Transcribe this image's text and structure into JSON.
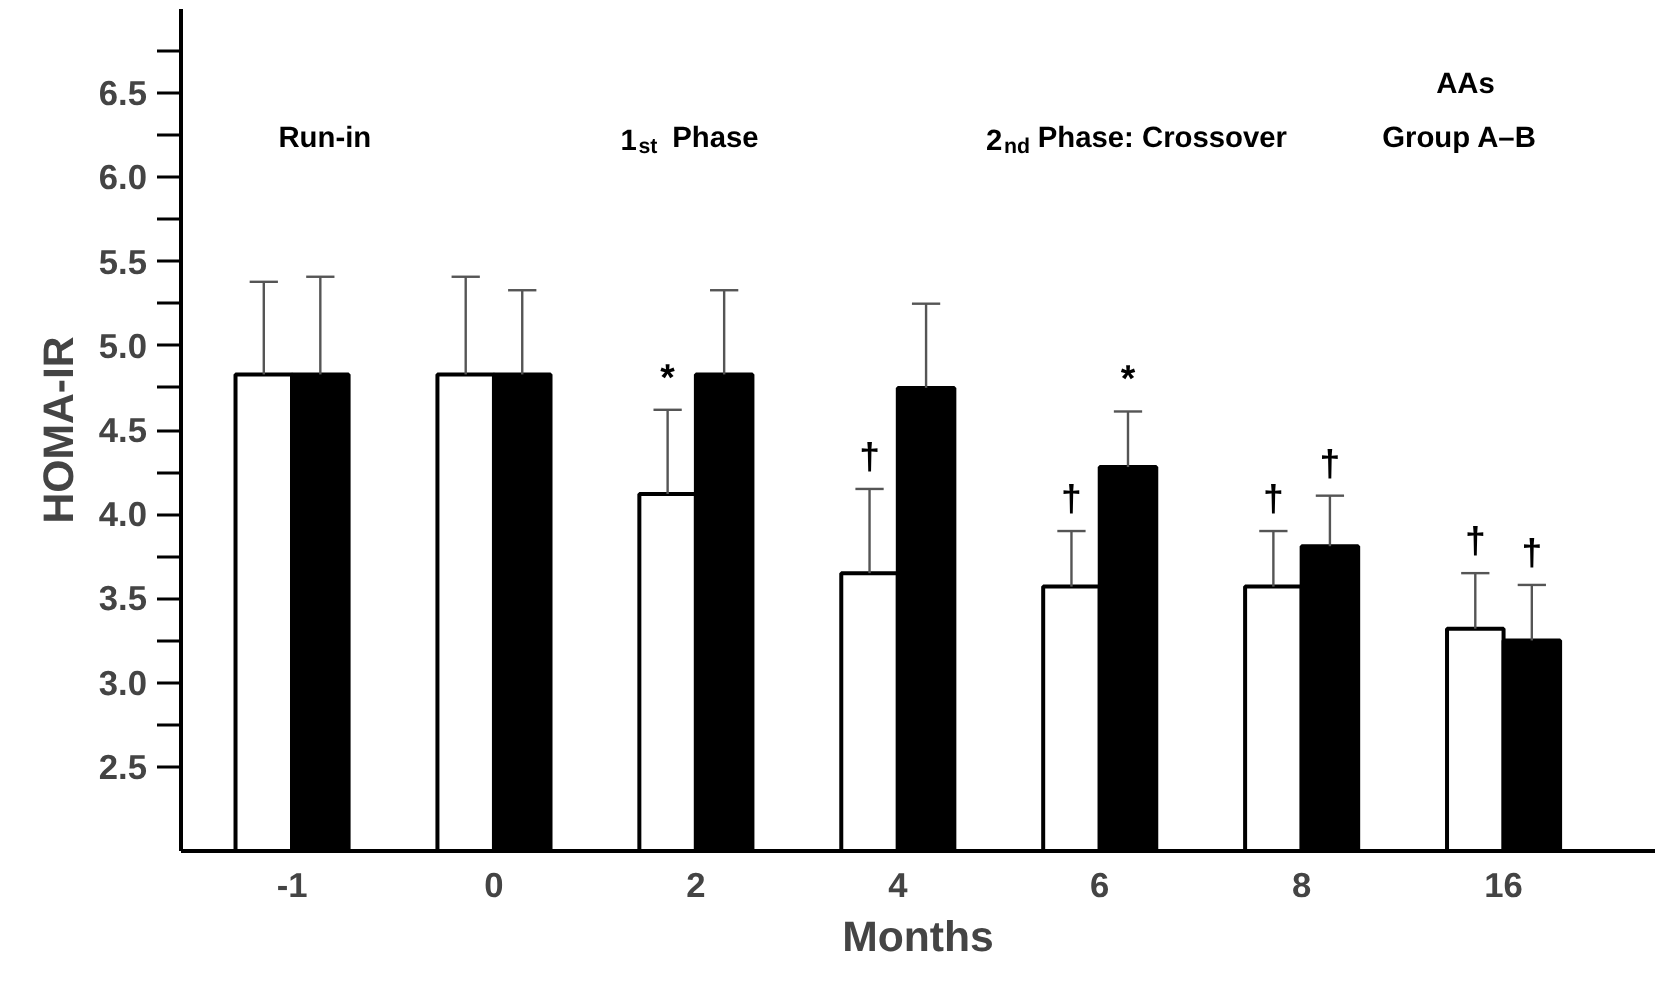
{
  "chart_data": {
    "type": "bar",
    "xlabel": "Months",
    "ylabel": "HOMA-IR",
    "categories": [
      "-1",
      "0",
      "2",
      "4",
      "6",
      "8",
      "16"
    ],
    "series": [
      {
        "color": "#ffffff",
        "values": [
          4.83,
          4.83,
          4.12,
          3.65,
          3.57,
          3.57,
          3.32
        ],
        "errors": [
          [
            4.83,
            5.38
          ],
          [
            4.83,
            5.41
          ],
          [
            4.12,
            4.62
          ],
          [
            3.65,
            4.15
          ],
          [
            3.57,
            3.9
          ],
          [
            3.57,
            3.9
          ],
          [
            3.32,
            3.65
          ]
        ],
        "value_labels": [
          null,
          null,
          "*",
          "†",
          "†",
          "†",
          "†"
        ]
      },
      {
        "color": "#000000",
        "values": [
          4.83,
          4.83,
          4.83,
          4.75,
          4.28,
          3.81,
          3.25
        ],
        "errors": [
          [
            4.83,
            5.41
          ],
          [
            4.83,
            5.33
          ],
          [
            4.83,
            5.33
          ],
          [
            4.75,
            5.25
          ],
          [
            4.28,
            4.61
          ],
          [
            3.81,
            4.11
          ],
          [
            3.25,
            3.58
          ]
        ],
        "value_labels": [
          null,
          null,
          null,
          null,
          "*",
          "†",
          "†"
        ]
      }
    ],
    "ylim": [
      2.0,
      7.0
    ],
    "yticks": [
      {
        "value": 2.5,
        "label": "2.5"
      },
      {
        "value": 3,
        "label": "3.0"
      },
      {
        "value": 3.5,
        "label": "3.5"
      },
      {
        "value": 4,
        "label": "4.0"
      },
      {
        "value": 4.5,
        "label": "4.5"
      },
      {
        "value": 5,
        "label": "5.0"
      },
      {
        "value": 5.5,
        "label": "5.5"
      },
      {
        "value": 6,
        "label": "6.0"
      },
      {
        "value": 6.5,
        "label": "6.5"
      }
    ],
    "grid": false,
    "annotations": [
      "Run-in",
      "1$_{st}$ Phase",
      "2$_{nd}$ Phase: Crossover",
      "AAs\nGroup A–B"
    ]
  }
}
